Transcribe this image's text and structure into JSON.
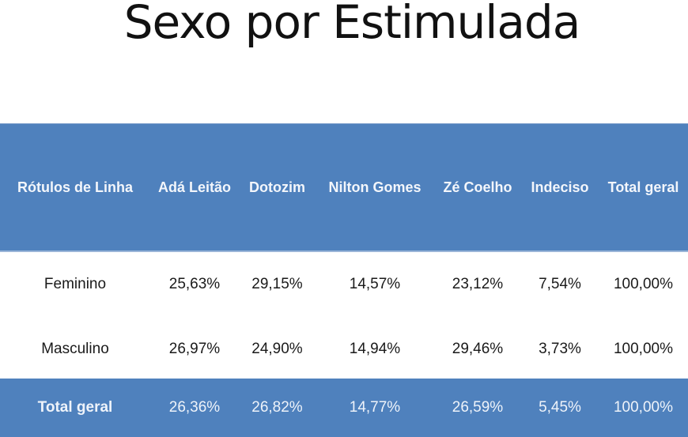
{
  "title": "Sexo por Estimulada",
  "table": {
    "columns": [
      "Rótulos de Linha",
      "Adá Leitão",
      "Dotozim",
      "Nilton Gomes",
      "Zé Coelho",
      "Indeciso",
      "Total geral"
    ],
    "rows": [
      [
        "Feminino",
        "25,63%",
        "29,15%",
        "14,57%",
        "23,12%",
        "7,54%",
        "100,00%"
      ],
      [
        "Masculino",
        "26,97%",
        "24,90%",
        "14,94%",
        "29,46%",
        "3,73%",
        "100,00%"
      ]
    ],
    "total": [
      "Total geral",
      "26,36%",
      "26,82%",
      "14,77%",
      "26,59%",
      "5,45%",
      "100,00%"
    ]
  },
  "colors": {
    "header_bg": "#4f81bd",
    "header_text": "#ffffff",
    "body_text": "#1a1a1a"
  }
}
